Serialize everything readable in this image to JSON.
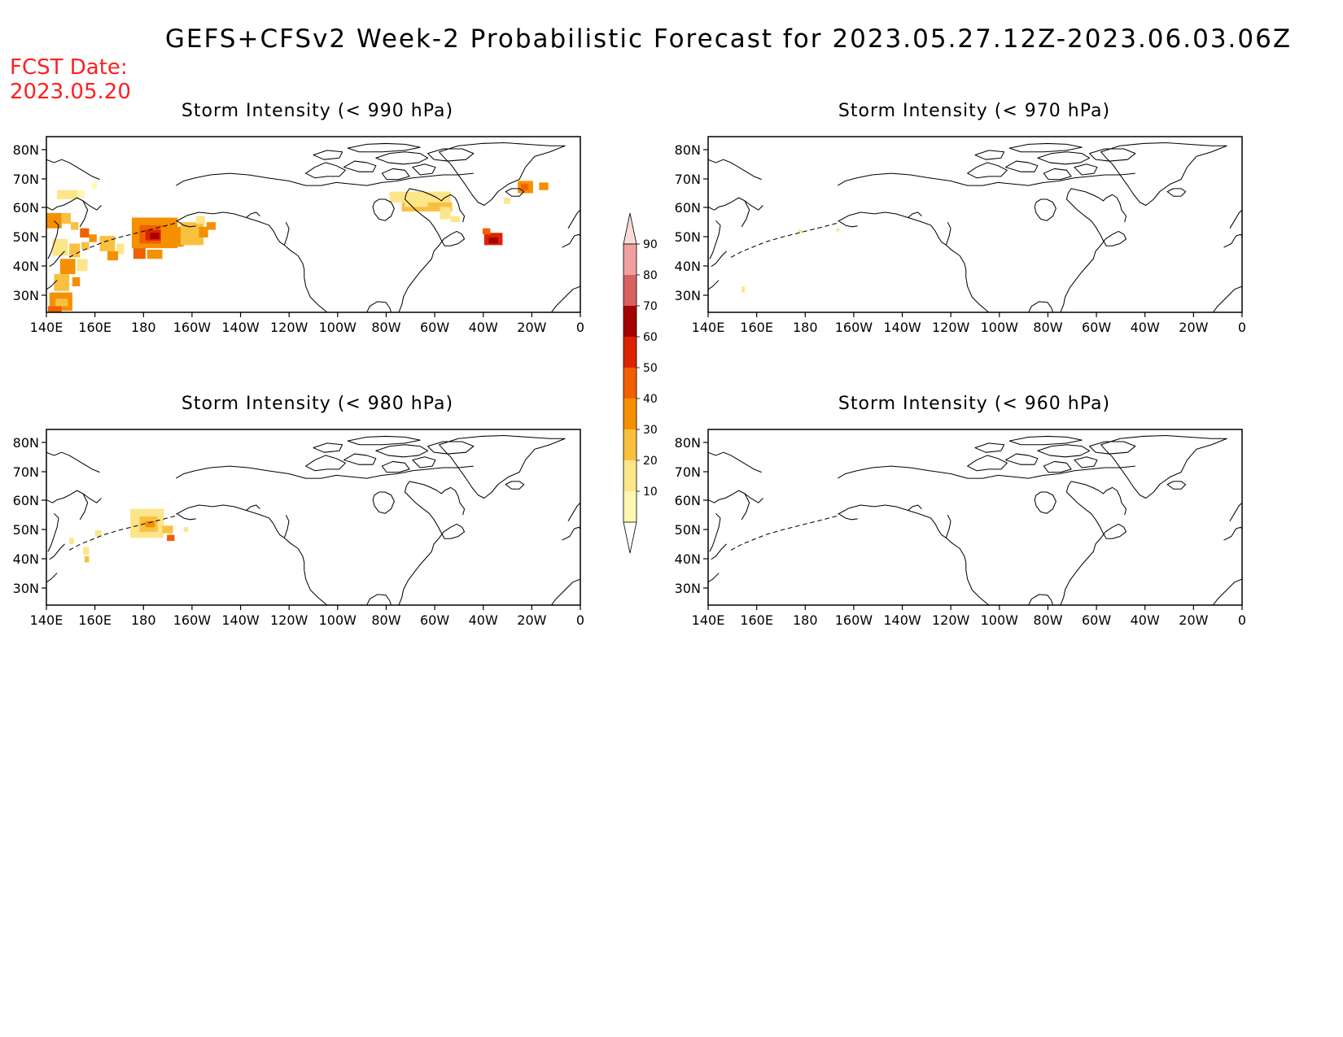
{
  "title": "GEFS+CFSv2 Week-2 Probabilistic Forecast for 2023.05.27.12Z-2023.06.03.06Z",
  "fcst_date_label": "FCST Date:",
  "fcst_date_value": "2023.05.20",
  "panels": [
    {
      "title": "Storm Intensity (< 990 hPa)"
    },
    {
      "title": "Storm Intensity (< 970 hPa)"
    },
    {
      "title": "Storm Intensity (< 980 hPa)"
    },
    {
      "title": "Storm Intensity (< 960 hPa)"
    }
  ],
  "axes": {
    "lat_labels": [
      "80N",
      "70N",
      "60N",
      "50N",
      "40N",
      "30N"
    ],
    "lon_labels": [
      "140E",
      "160E",
      "180",
      "160W",
      "140W",
      "120W",
      "100W",
      "80W",
      "60W",
      "40W",
      "20W",
      "0"
    ]
  },
  "colorbar": {
    "labels": [
      "10",
      "20",
      "30",
      "40",
      "50",
      "60",
      "70",
      "80",
      "90"
    ],
    "colors": [
      "#fff7b0",
      "#fde58a",
      "#f9c040",
      "#f59000",
      "#f06000",
      "#dd2200",
      "#a40000",
      "#d86060",
      "#f0a0a0",
      "#fbdada"
    ]
  }
}
